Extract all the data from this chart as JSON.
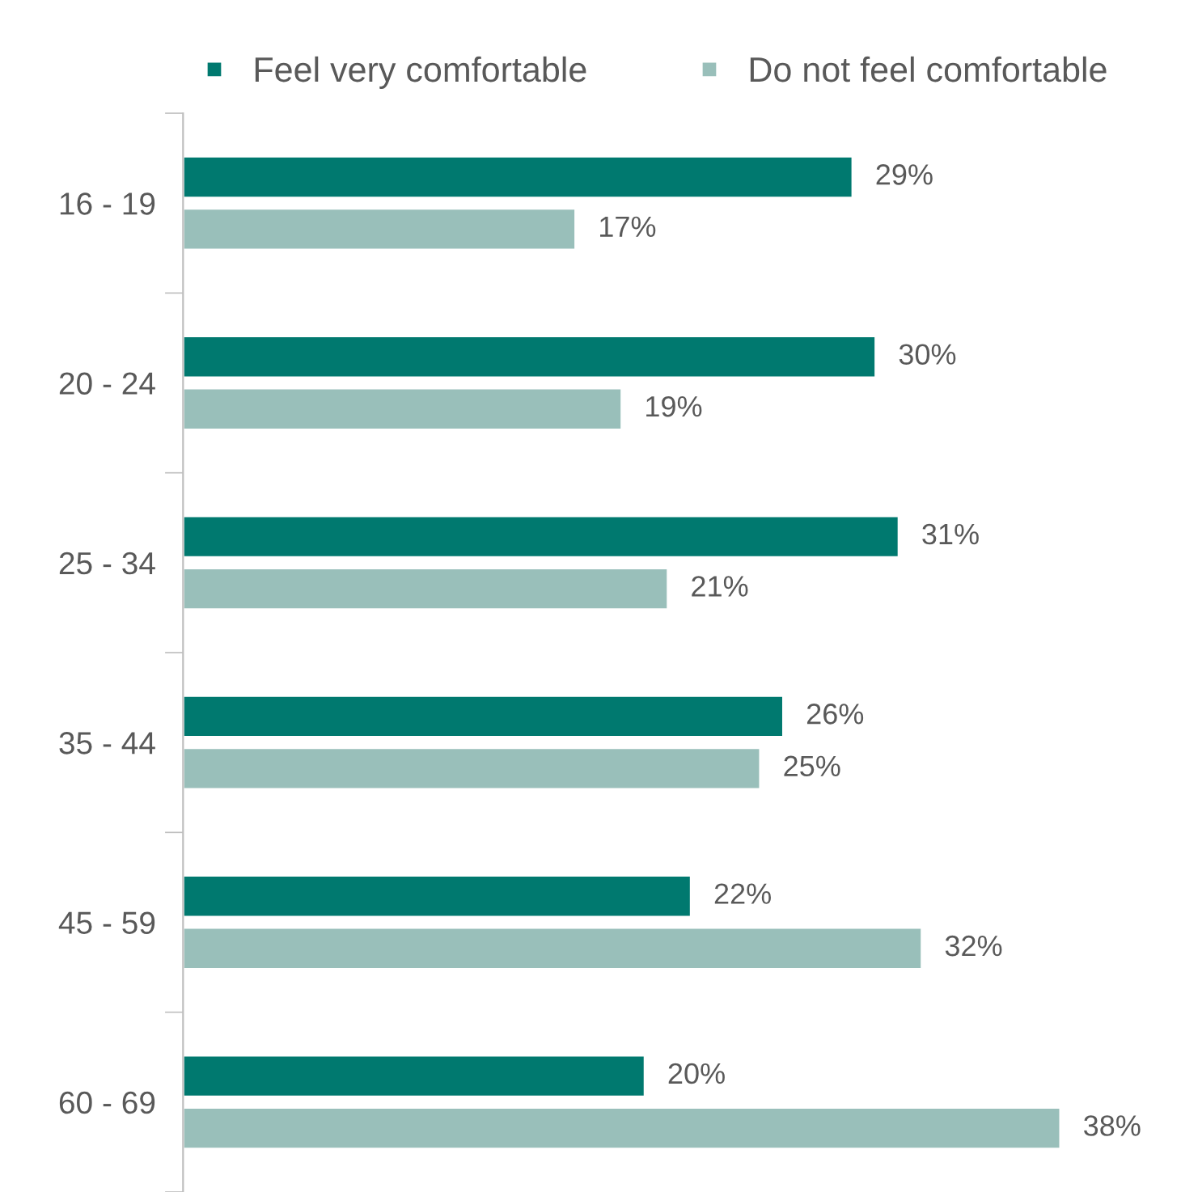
{
  "chart_data": {
    "type": "bar",
    "orientation": "horizontal",
    "legend": "top",
    "categories": [
      "16 - 19",
      "20 - 24",
      "25 - 34",
      "35 - 44",
      "45 - 59",
      "60 - 69"
    ],
    "series": [
      {
        "name": "Feel very comfortable",
        "color": "#00796f",
        "values": [
          29,
          30,
          31,
          26,
          22,
          20
        ],
        "value_labels": [
          "29%",
          "30%",
          "31%",
          "26%",
          "22%",
          "20%"
        ]
      },
      {
        "name": "Do not feel comfortable",
        "color": "#99bfba",
        "values": [
          17,
          19,
          21,
          25,
          32,
          38
        ],
        "value_labels": [
          "17%",
          "19%",
          "21%",
          "25%",
          "32%",
          "38%"
        ]
      }
    ]
  }
}
